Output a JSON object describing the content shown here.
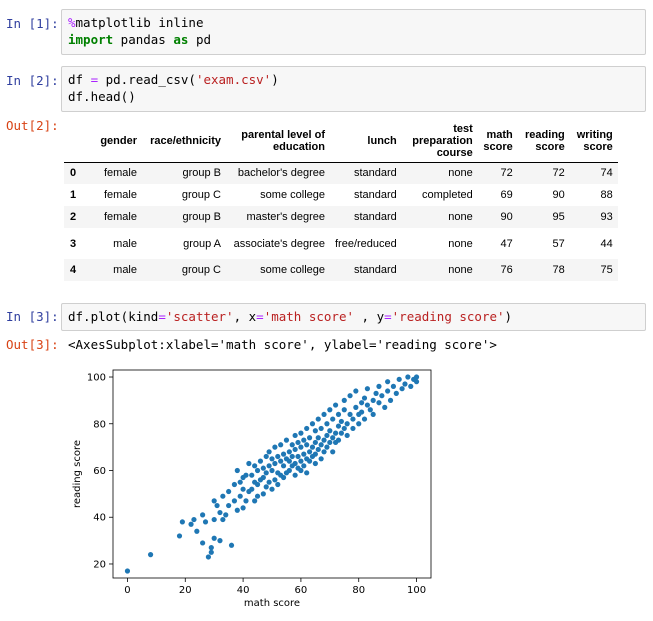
{
  "cells": {
    "c1": {
      "prompt": "In [1]:",
      "line1_magic": "%",
      "line1_rest": "matplotlib inline",
      "line2_kw1": "import",
      "line2_mid": " pandas ",
      "line2_kw2": "as",
      "line2_end": " pd"
    },
    "c2": {
      "prompt": "In [2]:",
      "line1_a": "df ",
      "line1_op": "=",
      "line1_b": " pd.read_csv(",
      "line1_str": "'exam.csv'",
      "line1_c": ")",
      "line2": "df.head()",
      "out_prompt": "Out[2]:"
    },
    "c3": {
      "prompt": "In [3]:",
      "a": "df.plot(kind",
      "op1": "=",
      "s1": "'scatter'",
      "b": ", x",
      "op2": "=",
      "s2": "'math score'",
      "c": " , y",
      "op3": "=",
      "s3": "'reading score'",
      "d": ")",
      "out_prompt": "Out[3]:",
      "out_text": "<AxesSubplot:xlabel='math score', ylabel='reading score'>"
    }
  },
  "table": {
    "headers": [
      "",
      "gender",
      "race/ethnicity",
      "parental level of education",
      "lunch",
      "test preparation course",
      "math score",
      "reading score",
      "writing score"
    ],
    "rows": [
      [
        "0",
        "female",
        "group B",
        "bachelor's degree",
        "standard",
        "none",
        "72",
        "72",
        "74"
      ],
      [
        "1",
        "female",
        "group C",
        "some college",
        "standard",
        "completed",
        "69",
        "90",
        "88"
      ],
      [
        "2",
        "female",
        "group B",
        "master's degree",
        "standard",
        "none",
        "90",
        "95",
        "93"
      ],
      [
        "3",
        "male",
        "group A",
        "associate's degree",
        "free/reduced",
        "none",
        "47",
        "57",
        "44"
      ],
      [
        "4",
        "male",
        "group C",
        "some college",
        "standard",
        "none",
        "76",
        "78",
        "75"
      ]
    ]
  },
  "chart_data": {
    "type": "scatter",
    "xlabel": "math score",
    "ylabel": "reading score",
    "xlim": [
      -5,
      105
    ],
    "ylim": [
      14,
      103
    ],
    "xticks": [
      0,
      20,
      40,
      60,
      80,
      100
    ],
    "yticks": [
      20,
      40,
      60,
      80,
      100
    ],
    "grid": false,
    "color": "#1f77b4",
    "series": [
      {
        "x": [
          0,
          8,
          18,
          19,
          22,
          23,
          24,
          26,
          26,
          27,
          28,
          29,
          29,
          30,
          30,
          30,
          31,
          32,
          32,
          33,
          33,
          34,
          35,
          35,
          36,
          37,
          37,
          38,
          38,
          39,
          39,
          40,
          40,
          40,
          41,
          41,
          42,
          42,
          43,
          43,
          44,
          44,
          44,
          45,
          45,
          45,
          46,
          46,
          47,
          47,
          47,
          48,
          48,
          48,
          49,
          49,
          49,
          50,
          50,
          50,
          51,
          51,
          51,
          52,
          52,
          52,
          53,
          53,
          53,
          54,
          54,
          54,
          55,
          55,
          55,
          56,
          56,
          56,
          57,
          57,
          57,
          58,
          58,
          58,
          58,
          59,
          59,
          59,
          60,
          60,
          60,
          60,
          61,
          61,
          61,
          62,
          62,
          62,
          62,
          63,
          63,
          63,
          64,
          64,
          64,
          65,
          65,
          65,
          65,
          66,
          66,
          66,
          67,
          67,
          67,
          68,
          68,
          68,
          69,
          69,
          69,
          70,
          70,
          70,
          71,
          71,
          71,
          72,
          72,
          72,
          73,
          73,
          73,
          74,
          74,
          75,
          75,
          75,
          76,
          76,
          77,
          77,
          78,
          78,
          79,
          79,
          80,
          80,
          81,
          81,
          82,
          82,
          83,
          83,
          84,
          85,
          85,
          86,
          87,
          87,
          88,
          89,
          90,
          90,
          91,
          92,
          93,
          94,
          95,
          96,
          97,
          98,
          99,
          100,
          100
        ],
        "y": [
          17,
          24,
          32,
          38,
          37,
          39,
          34,
          41,
          29,
          38,
          23,
          25,
          27,
          31,
          39,
          47,
          45,
          30,
          42,
          39,
          49,
          41,
          51,
          45,
          28,
          54,
          47,
          43,
          60,
          55,
          49,
          44,
          52,
          57,
          58,
          47,
          51,
          63,
          52,
          58,
          62,
          47,
          55,
          54,
          60,
          49,
          56,
          64,
          57,
          50,
          61,
          59,
          66,
          53,
          55,
          62,
          68,
          52,
          60,
          65,
          56,
          63,
          70,
          59,
          66,
          54,
          64,
          58,
          71,
          57,
          67,
          62,
          65,
          59,
          73,
          60,
          68,
          64,
          62,
          71,
          66,
          63,
          69,
          75,
          58,
          66,
          72,
          61,
          64,
          70,
          76,
          60,
          67,
          73,
          62,
          65,
          71,
          78,
          59,
          68,
          74,
          64,
          70,
          66,
          80,
          72,
          67,
          63,
          77,
          69,
          74,
          82,
          71,
          65,
          78,
          73,
          68,
          84,
          75,
          70,
          80,
          72,
          77,
          86,
          68,
          74,
          82,
          76,
          72,
          88,
          79,
          73,
          84,
          81,
          76,
          78,
          86,
          90,
          80,
          75,
          84,
          92,
          82,
          78,
          87,
          94,
          84,
          80,
          89,
          85,
          91,
          82,
          88,
          95,
          86,
          90,
          84,
          93,
          89,
          96,
          92,
          87,
          94,
          98,
          90,
          96,
          93,
          99,
          95,
          97,
          100,
          96,
          99,
          100,
          98
        ]
      }
    ]
  }
}
